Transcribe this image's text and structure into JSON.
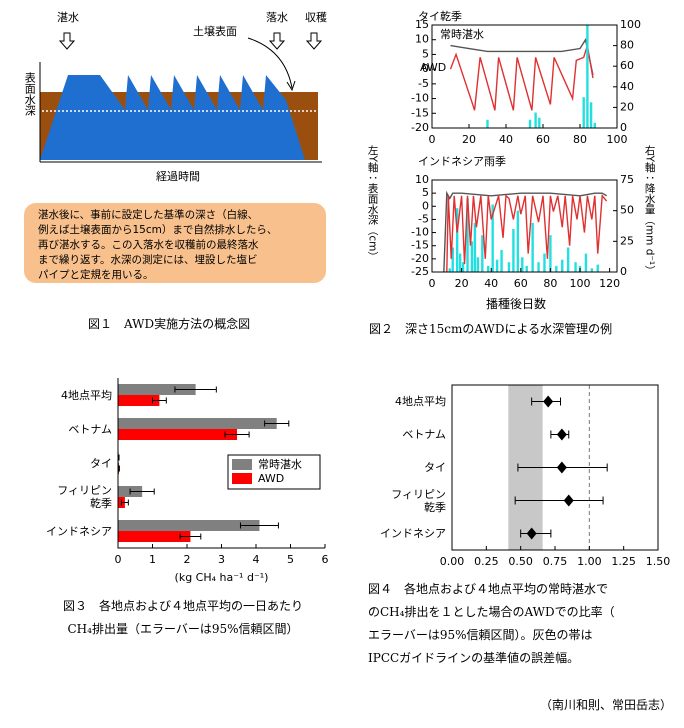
{
  "figure1": {
    "labels": {
      "flood": "湛水",
      "drain": "落水",
      "harvest": "収穫",
      "soil_surface": "土壌表面",
      "ylabel": "表面水深",
      "xlabel": "経過時間"
    },
    "note": "湛水後に、事前に設定した基準の深さ（白線、\n例えば土壌表面から15cm）まで自然排水したら、\n再び湛水する。この入落水を収穫前の最終落水\nまで繰り返す。水深の測定には、埋設した塩ビ\nパイプと定規を用いる。",
    "caption": "図１　AWD実施方法の概念図"
  },
  "figure2": {
    "ylabel": "左Y軸：表面水深（cm）",
    "y2label": "右Y軸：降水量（mm d⁻¹）",
    "xlabel": "播種後日数",
    "caption": "図２　深さ15cmのAWDによる水深管理の例"
  },
  "chart_data": [
    {
      "type": "line",
      "title": "タイ乾季",
      "xlim": [
        0,
        100
      ],
      "xticks": [
        0,
        20,
        40,
        60,
        80,
        100
      ],
      "ylim": [
        -20,
        15
      ],
      "yticks": [
        -20,
        -15,
        -10,
        -5,
        0,
        5,
        10,
        15
      ],
      "y2lim": [
        0,
        100
      ],
      "y2ticks": [
        0,
        20,
        40,
        60,
        80,
        100
      ],
      "grid": false,
      "series": [
        {
          "name": "常時湛水",
          "color": "#555555",
          "x": [
            10,
            20,
            30,
            40,
            50,
            60,
            70,
            80,
            83,
            87
          ],
          "values": [
            8,
            7,
            6,
            6,
            6,
            6,
            6,
            7,
            10,
            -2
          ]
        },
        {
          "name": "AWD",
          "color": "#e03030",
          "x": [
            10,
            13,
            22,
            23,
            26,
            34,
            36,
            44,
            46,
            54,
            56,
            64,
            66,
            76,
            78,
            82,
            84,
            87
          ],
          "values": [
            0,
            5,
            -12,
            -14,
            4,
            -14,
            4,
            -14,
            4,
            -14,
            4,
            -12,
            4,
            -10,
            3,
            4,
            8,
            -3
          ]
        },
        {
          "type": "bar",
          "axis": "y2",
          "color": "#22e0e0",
          "x": [
            30,
            53,
            56,
            58,
            82,
            84,
            86,
            88
          ],
          "values": [
            8,
            8,
            15,
            10,
            30,
            100,
            25,
            5
          ]
        }
      ]
    },
    {
      "type": "line",
      "title": "インドネシア雨季",
      "xlim": [
        0,
        125
      ],
      "xticks": [
        0,
        20,
        40,
        60,
        80,
        100,
        120
      ],
      "ylim": [
        -25,
        10
      ],
      "yticks": [
        -25,
        -20,
        -15,
        -10,
        -5,
        0,
        5,
        10
      ],
      "y2lim": [
        0,
        75
      ],
      "y2ticks": [
        0,
        25,
        50,
        75
      ],
      "grid": false,
      "series": [
        {
          "type": "bar",
          "axis": "y2",
          "color": "#22e0e0",
          "x": [
            12,
            14,
            17,
            19,
            21,
            24,
            27,
            29,
            31,
            34,
            38,
            41,
            44,
            47,
            52,
            55,
            58,
            61,
            64,
            68,
            72,
            76,
            80,
            84,
            88,
            92,
            97,
            100,
            104,
            108,
            112
          ],
          "values": [
            3,
            20,
            52,
            15,
            8,
            60,
            25,
            40,
            12,
            30,
            5,
            55,
            10,
            18,
            8,
            35,
            50,
            12,
            5,
            40,
            8,
            15,
            30,
            5,
            10,
            20,
            8,
            5,
            15,
            3,
            6
          ]
        },
        {
          "color": "#555555",
          "x": [
            8,
            10,
            12,
            14,
            20,
            40,
            60,
            80,
            100,
            110,
            115,
            118
          ],
          "values": [
            -25,
            5,
            3,
            5,
            5,
            4,
            5,
            5,
            4,
            5,
            5,
            4
          ]
        },
        {
          "color": "#e03030",
          "x": [
            10,
            11,
            13,
            15,
            17,
            20,
            22,
            24,
            26,
            28,
            30,
            33,
            36,
            38,
            40,
            45,
            48,
            50,
            52,
            55,
            58,
            60,
            63,
            65,
            68,
            72,
            75,
            78,
            80,
            82,
            85,
            88,
            90,
            93,
            95,
            98,
            100,
            103,
            105,
            108,
            110,
            112,
            115,
            118
          ],
          "values": [
            -25,
            4,
            -20,
            4,
            -10,
            4,
            -22,
            4,
            -15,
            4,
            -8,
            4,
            -20,
            4,
            -5,
            4,
            -12,
            4,
            3,
            -5,
            4,
            -3,
            4,
            -18,
            4,
            -6,
            4,
            -20,
            4,
            -2,
            4,
            -8,
            4,
            -15,
            4,
            -5,
            4,
            -10,
            4,
            -5,
            4,
            -18,
            4,
            2
          ]
        }
      ]
    },
    {
      "type": "hbar",
      "categories": [
        "4地点平均",
        "ベトナム",
        "タイ",
        "フィリピン\n乾季",
        "インドネシア"
      ],
      "xlabel": "(kg CH₄ ha⁻¹ d⁻¹)",
      "xlim": [
        0,
        6
      ],
      "xticks": [
        0,
        1,
        2,
        3,
        4,
        5,
        6
      ],
      "legend": "right",
      "series": [
        {
          "name": "常時湛水",
          "color": "#808080",
          "values": [
            2.25,
            4.6,
            0.02,
            0.7,
            4.1
          ],
          "errors": [
            0.6,
            0.35,
            0.01,
            0.35,
            0.55
          ]
        },
        {
          "name": "AWD",
          "color": "#ff0000",
          "values": [
            1.2,
            3.45,
            0.03,
            0.2,
            2.1
          ],
          "errors": [
            0.2,
            0.35,
            0.01,
            0.1,
            0.3
          ]
        }
      ],
      "caption": "図３　各地点および４地点平均の一日あたり\nCH₄排出量（エラーバーは95%信頼区間）"
    },
    {
      "type": "dot",
      "categories": [
        "4地点平均",
        "ベトナム",
        "タイ",
        "フィリピン\n乾季",
        "インドネシア"
      ],
      "xlim": [
        0,
        1.5
      ],
      "xticks": [
        {
          "value": 0,
          "label": "0.00"
        },
        {
          "value": 0.25,
          "label": "0.25"
        },
        {
          "value": 0.5,
          "label": "0.50"
        },
        {
          "value": 0.75,
          "label": "0.75"
        },
        {
          "value": 1,
          "label": "1.00"
        },
        {
          "value": 1.25,
          "label": "1.25"
        },
        {
          "value": 1.5,
          "label": "1.50"
        }
      ],
      "color": "#000000",
      "values": [
        0.7,
        0.8,
        0.8,
        0.85,
        0.58
      ],
      "lower": [
        0.58,
        0.72,
        0.48,
        0.46,
        0.5
      ],
      "upper": [
        0.79,
        0.85,
        1.13,
        1.1,
        0.72
      ],
      "band": [
        0.41,
        0.66
      ],
      "band_color": "#c8c8c8",
      "reference": 1,
      "caption": "図４　各地点および４地点平均の常時湛水で\nのCH₄排出を１とした場合のAWDでの比率（\nエラーバーは95%信頼区間）。灰色の帯は\nIPCCガイドラインの基準値の誤差幅。"
    }
  ],
  "credit": "（南川和則、常田岳志）"
}
